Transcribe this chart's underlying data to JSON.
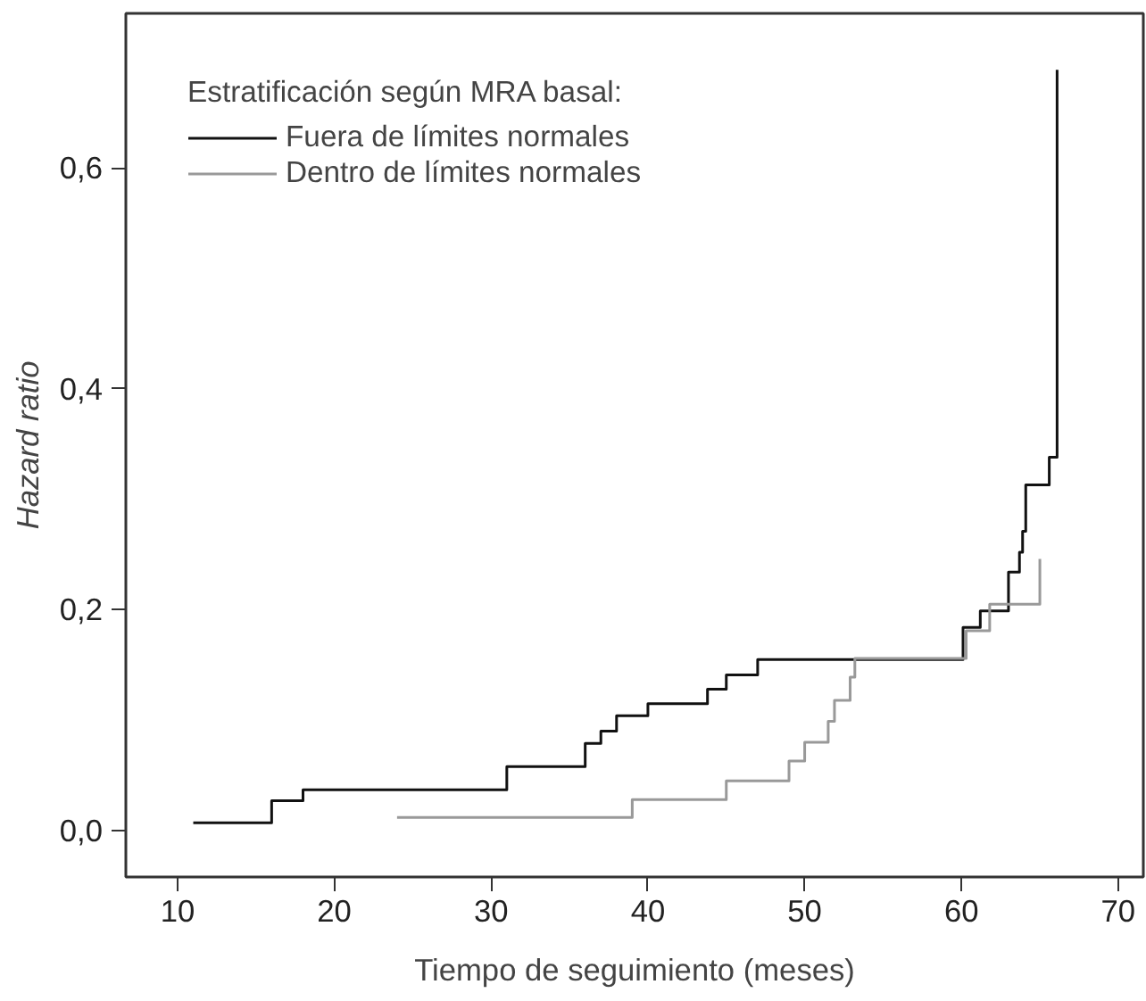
{
  "chart_data": {
    "type": "step",
    "xlabel": "Tiempo de seguimiento (meses)",
    "ylabel": "Hazard ratio",
    "legend_title": "Estratificación según MRA basal:",
    "series": [
      {
        "name": "Fuera de límites normales",
        "color": "#111111",
        "x": [
          11,
          16,
          18,
          31,
          36,
          37,
          38,
          40,
          43.8,
          45,
          47,
          60.1,
          61.2,
          63,
          63.7,
          63.9,
          64.1,
          65.6,
          66.1
        ],
        "values": [
          0.007,
          0.027,
          0.037,
          0.058,
          0.079,
          0.09,
          0.104,
          0.115,
          0.128,
          0.141,
          0.155,
          0.184,
          0.199,
          0.234,
          0.252,
          0.271,
          0.313,
          0.338,
          0.689
        ]
      },
      {
        "name": "Dentro de límites normales",
        "color": "#999999",
        "x": [
          24,
          39,
          45,
          49,
          50,
          51.5,
          51.9,
          52.9,
          53.2,
          60.3,
          61.8,
          65
        ],
        "values": [
          0.012,
          0.028,
          0.045,
          0.063,
          0.08,
          0.099,
          0.118,
          0.139,
          0.156,
          0.181,
          0.205,
          0.246
        ]
      }
    ],
    "xlim": [
      6.7,
      71.6
    ],
    "xticks": [
      10,
      20,
      30,
      40,
      50,
      60,
      70
    ],
    "ylim": [
      -0.042,
      0.74
    ],
    "yticks": [
      {
        "value": 0,
        "label": "0,0"
      },
      {
        "value": 0.2,
        "label": "0,2"
      },
      {
        "value": 0.4,
        "label": "0,4"
      },
      {
        "value": 0.6,
        "label": "0,6"
      }
    ],
    "grid": false,
    "legend": "top left"
  }
}
